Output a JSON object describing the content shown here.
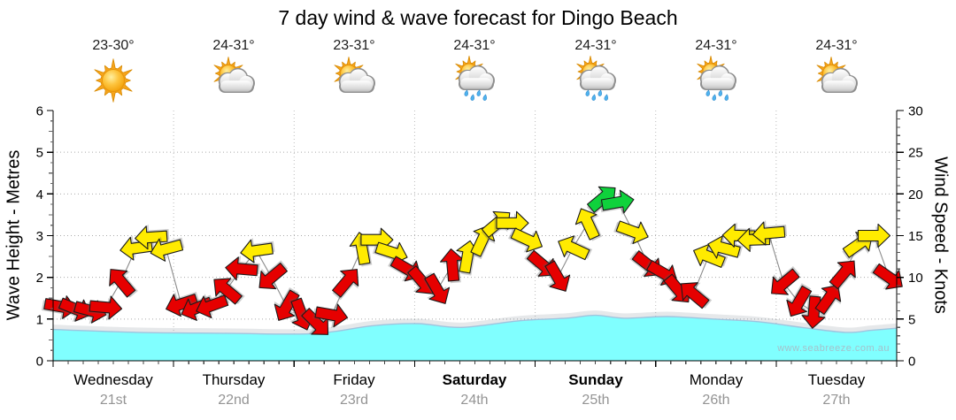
{
  "title": "7 day wind & wave forecast for Dingo Beach",
  "watermark": "www.seabreeze.com.au",
  "axes": {
    "left_label": "Wave Height - Metres",
    "right_label": "Wind Speed - Knots",
    "left_ticks": [
      "0",
      "1",
      "2",
      "3",
      "4",
      "5",
      "6"
    ],
    "right_ticks": [
      "0",
      "5",
      "10",
      "15",
      "20",
      "25",
      "30"
    ]
  },
  "days": [
    {
      "name": "Wednesday",
      "date": "21st",
      "temp": "23-30°",
      "icon": "sunny",
      "weekend": false
    },
    {
      "name": "Thursday",
      "date": "22nd",
      "temp": "24-31°",
      "icon": "partly-cloudy",
      "weekend": false
    },
    {
      "name": "Friday",
      "date": "23rd",
      "temp": "23-31°",
      "icon": "partly-cloudy",
      "weekend": false
    },
    {
      "name": "Saturday",
      "date": "24th",
      "temp": "24-31°",
      "icon": "rain-showers",
      "weekend": true
    },
    {
      "name": "Sunday",
      "date": "25th",
      "temp": "24-31°",
      "icon": "rain-showers",
      "weekend": true
    },
    {
      "name": "Monday",
      "date": "26th",
      "temp": "24-31°",
      "icon": "rain-showers",
      "weekend": false
    },
    {
      "name": "Tuesday",
      "date": "27th",
      "temp": "24-31°",
      "icon": "partly-cloudy",
      "weekend": false
    }
  ],
  "colors": {
    "arrow_light": "#E60000",
    "arrow_moderate": "#FFEB00",
    "arrow_fresh": "#0FD23C",
    "arrow_outline": "#1a1a1a",
    "wave_fill": "#80FFFF",
    "wave_edge": "#9FC4DE",
    "gridline": "#AAAAAA",
    "day_gridline": "#BBBBBB",
    "axis": "#000000",
    "connector": "#8A8A8A"
  },
  "chart_data": {
    "type": "wind-wave-forecast",
    "title": "7 day wind & wave forecast for Dingo Beach",
    "x_axis": {
      "unit": "3-hour steps across 7 days",
      "days": [
        "Wednesday 21st",
        "Thursday 22nd",
        "Friday 23rd",
        "Saturday 24th",
        "Sunday 25th",
        "Monday 26th",
        "Tuesday 27th"
      ],
      "steps_per_day": 8
    },
    "wave_axis": {
      "label": "Wave Height - Metres",
      "range": [
        0,
        6
      ],
      "gridlines": [
        1,
        2,
        3,
        4,
        5
      ]
    },
    "wind_axis": {
      "label": "Wind Speed - Knots",
      "range": [
        0,
        30
      ],
      "gridlines": [
        5,
        10,
        15,
        20,
        25
      ]
    },
    "wind_color_key": {
      "r": "light red <12kn",
      "y": "moderate yellow 12-18kn",
      "g": "fresh green >18kn"
    },
    "wind_arrows_kn_dir_color": [
      [
        6.5,
        100,
        "r"
      ],
      [
        6.2,
        112,
        "r"
      ],
      [
        6.0,
        105,
        "r"
      ],
      [
        6.4,
        95,
        "r"
      ],
      [
        9.5,
        320,
        "r"
      ],
      [
        13.5,
        262,
        "y"
      ],
      [
        14.8,
        266,
        "y"
      ],
      [
        13.4,
        255,
        "y"
      ],
      [
        6.8,
        252,
        "r"
      ],
      [
        6.3,
        248,
        "r"
      ],
      [
        6.6,
        250,
        "r"
      ],
      [
        8.5,
        310,
        "r"
      ],
      [
        11.0,
        275,
        "r"
      ],
      [
        13.2,
        262,
        "y"
      ],
      [
        10.0,
        230,
        "r"
      ],
      [
        6.5,
        210,
        "r"
      ],
      [
        5.5,
        160,
        "r"
      ],
      [
        4.5,
        135,
        "r"
      ],
      [
        5.5,
        100,
        "r"
      ],
      [
        9.5,
        40,
        "r"
      ],
      [
        13.5,
        350,
        "y"
      ],
      [
        14.5,
        90,
        "y"
      ],
      [
        13.0,
        108,
        "y"
      ],
      [
        11.0,
        120,
        "r"
      ],
      [
        9.5,
        140,
        "r"
      ],
      [
        8.5,
        150,
        "r"
      ],
      [
        11.5,
        355,
        "r"
      ],
      [
        12.5,
        10,
        "y"
      ],
      [
        14.5,
        25,
        "y"
      ],
      [
        16.5,
        50,
        "y"
      ],
      [
        16.5,
        90,
        "y"
      ],
      [
        14.5,
        115,
        "y"
      ],
      [
        11.5,
        130,
        "r"
      ],
      [
        10.0,
        150,
        "r"
      ],
      [
        13.5,
        295,
        "y"
      ],
      [
        16.5,
        335,
        "y"
      ],
      [
        19.5,
        50,
        "g"
      ],
      [
        19.0,
        80,
        "g"
      ],
      [
        15.5,
        110,
        "y"
      ],
      [
        11.5,
        128,
        "r"
      ],
      [
        10.5,
        120,
        "r"
      ],
      [
        8.5,
        140,
        "r"
      ],
      [
        8.0,
        310,
        "r"
      ],
      [
        12.5,
        292,
        "y"
      ],
      [
        13.5,
        285,
        "y"
      ],
      [
        15.0,
        272,
        "y"
      ],
      [
        14.5,
        268,
        "y"
      ],
      [
        15.3,
        265,
        "y"
      ],
      [
        9.3,
        230,
        "r"
      ],
      [
        7.0,
        210,
        "r"
      ],
      [
        5.8,
        185,
        "r"
      ],
      [
        7.5,
        35,
        "r"
      ],
      [
        10.5,
        40,
        "r"
      ],
      [
        14.0,
        55,
        "y"
      ],
      [
        15.0,
        90,
        "y"
      ],
      [
        10.0,
        125,
        "r"
      ]
    ],
    "wave_height_m_points": [
      [
        0,
        0.75
      ],
      [
        5.6,
        0.68
      ],
      [
        11.5,
        0.66
      ],
      [
        17.3,
        0.65
      ],
      [
        21.2,
        0.84
      ],
      [
        24.2,
        0.89
      ],
      [
        27.1,
        0.8
      ],
      [
        31,
        0.96
      ],
      [
        34,
        1.02
      ],
      [
        36,
        1.09
      ],
      [
        37.9,
        1.02
      ],
      [
        40.8,
        1.06
      ],
      [
        43.8,
        1.0
      ],
      [
        46.7,
        0.94
      ],
      [
        49.7,
        0.8
      ],
      [
        52.6,
        0.68
      ],
      [
        54.3,
        0.73
      ],
      [
        56,
        0.78
      ]
    ]
  }
}
